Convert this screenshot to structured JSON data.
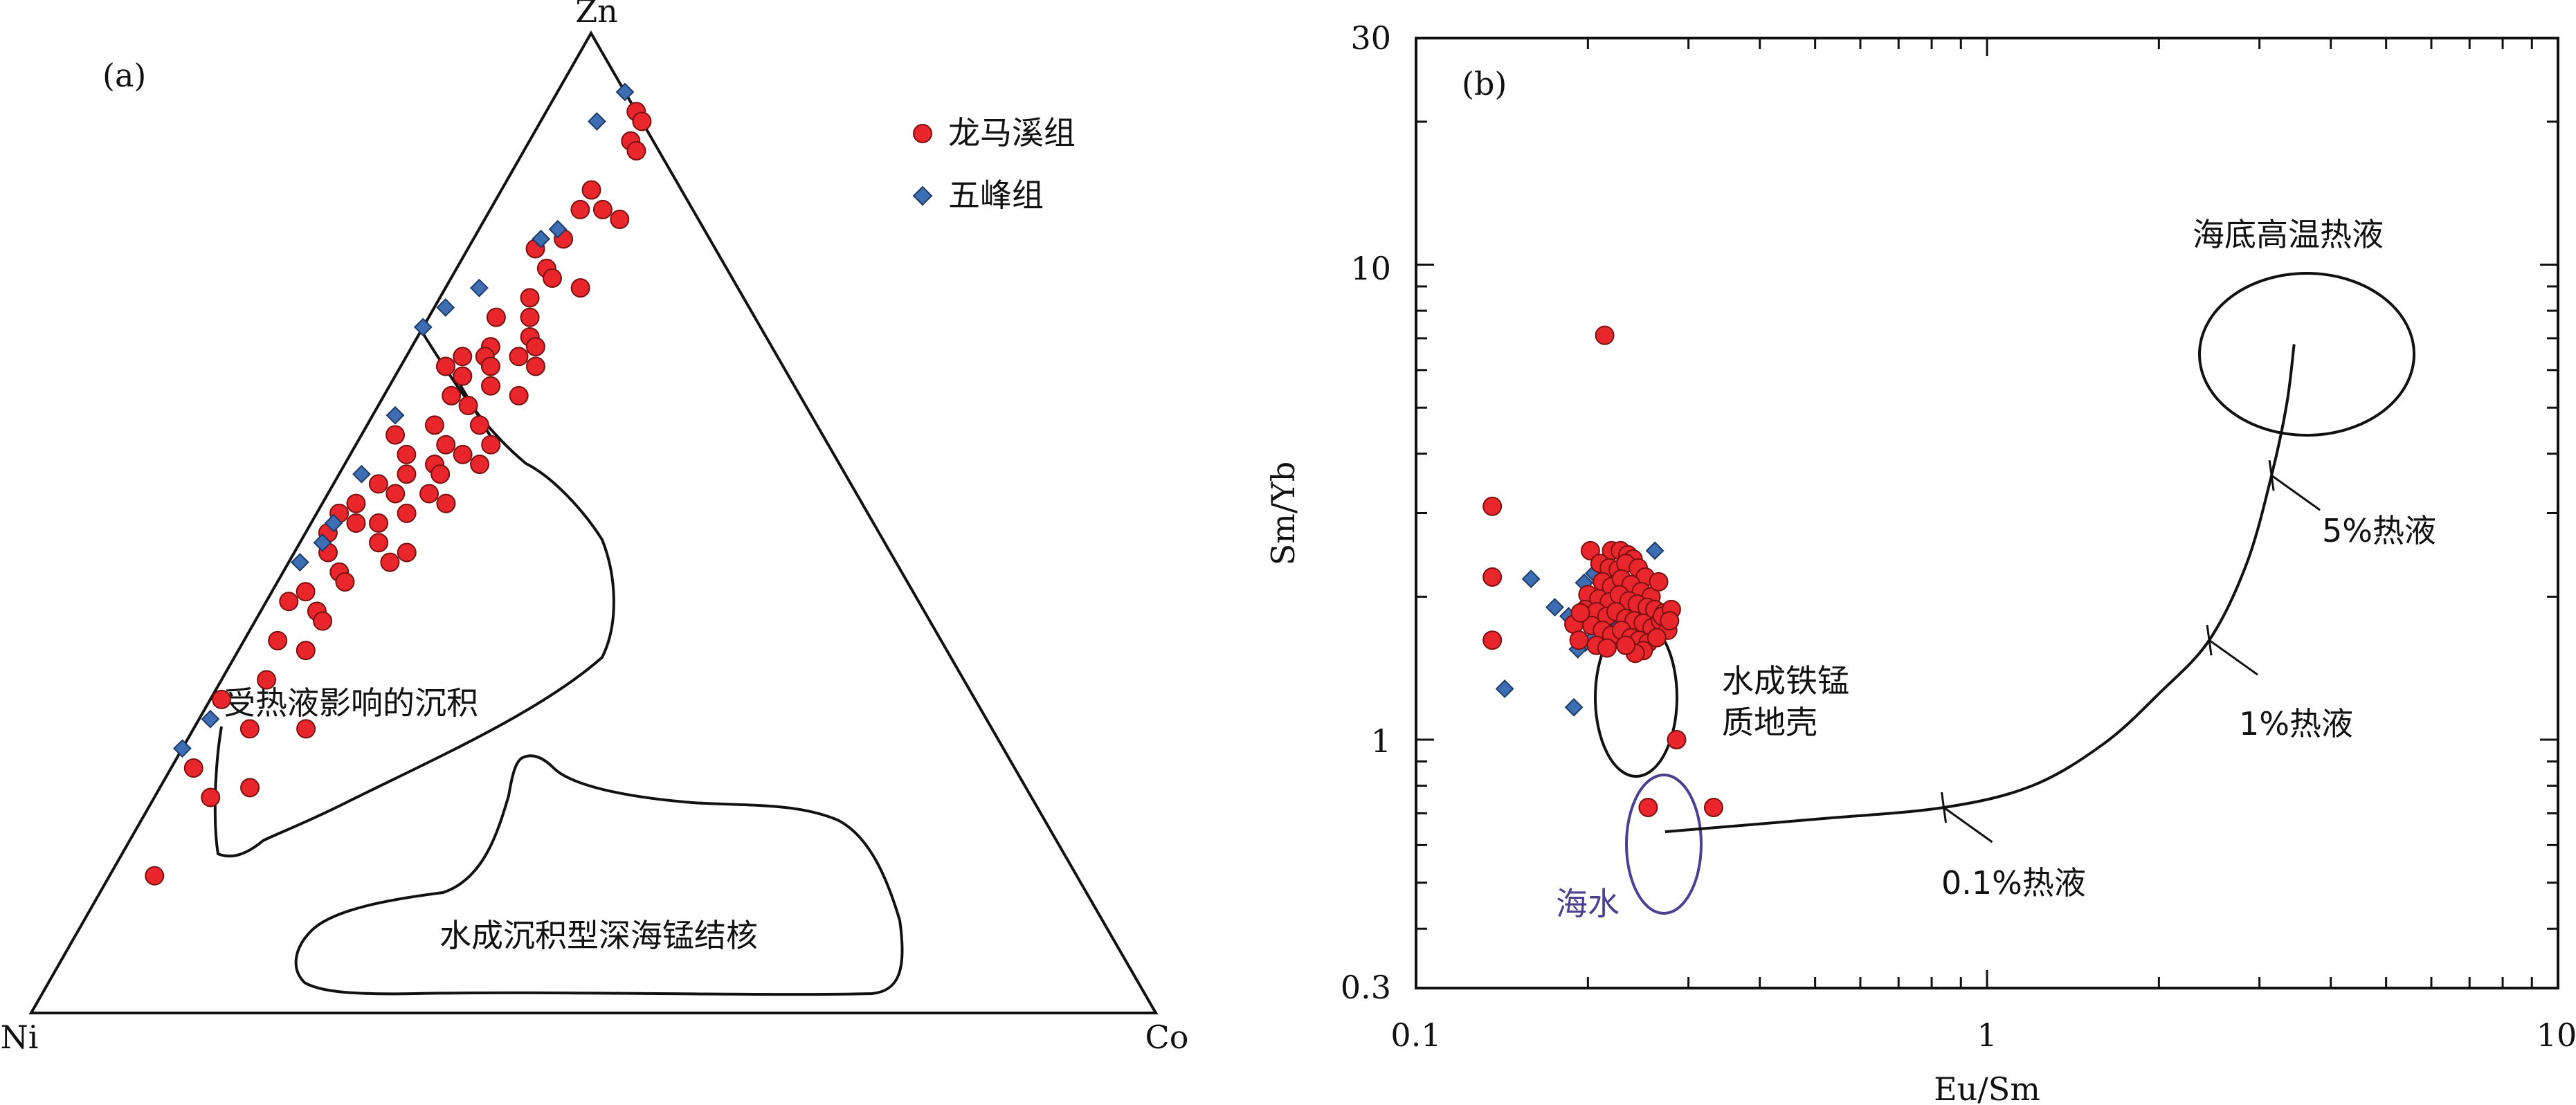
{
  "colors": {
    "longmaxi": "#e8262b",
    "wufeng": "#3d6eb3",
    "line": "#111111",
    "seawater": "#4b3f8f"
  },
  "chart_data": [
    {
      "type": "scatter",
      "subtype": "ternary",
      "panel_label": "(a)",
      "vertices": {
        "top": "Zn",
        "left": "Ni",
        "right": "Co"
      },
      "legend": {
        "placement": "top-right",
        "items": [
          {
            "name": "龙马溪组",
            "marker": "circle",
            "color": "#e8262b"
          },
          {
            "name": "五峰组",
            "marker": "diamond",
            "color": "#3d6eb3"
          }
        ]
      },
      "fields": [
        {
          "label": "受热液影响的沉积"
        },
        {
          "label": "水成沉积型深海锰结核"
        }
      ],
      "point_units": "fraction of Zn, Co, Ni (Zn + Co + Ni = 1)",
      "series": [
        {
          "name": "龙马溪组",
          "points": [
            {
              "Zn": 0.92,
              "Co": 0.08,
              "Ni": 0.0
            },
            {
              "Zn": 0.91,
              "Co": 0.09,
              "Ni": 0.0
            },
            {
              "Zn": 0.89,
              "Co": 0.09,
              "Ni": 0.02
            },
            {
              "Zn": 0.88,
              "Co": 0.1,
              "Ni": 0.02
            },
            {
              "Zn": 0.84,
              "Co": 0.08,
              "Ni": 0.08
            },
            {
              "Zn": 0.82,
              "Co": 0.08,
              "Ni": 0.1
            },
            {
              "Zn": 0.82,
              "Co": 0.1,
              "Ni": 0.08
            },
            {
              "Zn": 0.81,
              "Co": 0.12,
              "Ni": 0.07
            },
            {
              "Zn": 0.79,
              "Co": 0.08,
              "Ni": 0.13
            },
            {
              "Zn": 0.78,
              "Co": 0.06,
              "Ni": 0.16
            },
            {
              "Zn": 0.76,
              "Co": 0.08,
              "Ni": 0.16
            },
            {
              "Zn": 0.75,
              "Co": 0.09,
              "Ni": 0.16
            },
            {
              "Zn": 0.74,
              "Co": 0.12,
              "Ni": 0.14
            },
            {
              "Zn": 0.73,
              "Co": 0.08,
              "Ni": 0.19
            },
            {
              "Zn": 0.71,
              "Co": 0.06,
              "Ni": 0.23
            },
            {
              "Zn": 0.71,
              "Co": 0.09,
              "Ni": 0.2
            },
            {
              "Zn": 0.69,
              "Co": 0.1,
              "Ni": 0.21
            },
            {
              "Zn": 0.68,
              "Co": 0.11,
              "Ni": 0.21
            },
            {
              "Zn": 0.68,
              "Co": 0.07,
              "Ni": 0.25
            },
            {
              "Zn": 0.67,
              "Co": 0.07,
              "Ni": 0.26
            },
            {
              "Zn": 0.67,
              "Co": 0.05,
              "Ni": 0.28
            },
            {
              "Zn": 0.67,
              "Co": 0.1,
              "Ni": 0.23
            },
            {
              "Zn": 0.66,
              "Co": 0.12,
              "Ni": 0.22
            },
            {
              "Zn": 0.66,
              "Co": 0.08,
              "Ni": 0.26
            },
            {
              "Zn": 0.66,
              "Co": 0.04,
              "Ni": 0.3
            },
            {
              "Zn": 0.65,
              "Co": 0.06,
              "Ni": 0.29
            },
            {
              "Zn": 0.64,
              "Co": 0.09,
              "Ni": 0.27
            },
            {
              "Zn": 0.63,
              "Co": 0.12,
              "Ni": 0.25
            },
            {
              "Zn": 0.63,
              "Co": 0.06,
              "Ni": 0.31
            },
            {
              "Zn": 0.62,
              "Co": 0.08,
              "Ni": 0.3
            },
            {
              "Zn": 0.6,
              "Co": 0.1,
              "Ni": 0.3
            },
            {
              "Zn": 0.6,
              "Co": 0.06,
              "Ni": 0.34
            },
            {
              "Zn": 0.59,
              "Co": 0.03,
              "Ni": 0.38
            },
            {
              "Zn": 0.58,
              "Co": 0.12,
              "Ni": 0.3
            },
            {
              "Zn": 0.58,
              "Co": 0.08,
              "Ni": 0.34
            },
            {
              "Zn": 0.57,
              "Co": 0.1,
              "Ni": 0.33
            },
            {
              "Zn": 0.57,
              "Co": 0.05,
              "Ni": 0.38
            },
            {
              "Zn": 0.56,
              "Co": 0.12,
              "Ni": 0.32
            },
            {
              "Zn": 0.56,
              "Co": 0.08,
              "Ni": 0.36
            },
            {
              "Zn": 0.55,
              "Co": 0.09,
              "Ni": 0.36
            },
            {
              "Zn": 0.55,
              "Co": 0.06,
              "Ni": 0.39
            },
            {
              "Zn": 0.54,
              "Co": 0.04,
              "Ni": 0.42
            },
            {
              "Zn": 0.53,
              "Co": 0.09,
              "Ni": 0.38
            },
            {
              "Zn": 0.53,
              "Co": 0.06,
              "Ni": 0.41
            },
            {
              "Zn": 0.52,
              "Co": 0.11,
              "Ni": 0.37
            },
            {
              "Zn": 0.52,
              "Co": 0.03,
              "Ni": 0.45
            },
            {
              "Zn": 0.51,
              "Co": 0.02,
              "Ni": 0.47
            },
            {
              "Zn": 0.51,
              "Co": 0.08,
              "Ni": 0.41
            },
            {
              "Zn": 0.5,
              "Co": 0.04,
              "Ni": 0.46
            },
            {
              "Zn": 0.5,
              "Co": 0.06,
              "Ni": 0.44
            },
            {
              "Zn": 0.49,
              "Co": 0.02,
              "Ni": 0.49
            },
            {
              "Zn": 0.48,
              "Co": 0.07,
              "Ni": 0.45
            },
            {
              "Zn": 0.47,
              "Co": 0.03,
              "Ni": 0.5
            },
            {
              "Zn": 0.47,
              "Co": 0.1,
              "Ni": 0.43
            },
            {
              "Zn": 0.46,
              "Co": 0.09,
              "Ni": 0.45
            },
            {
              "Zn": 0.45,
              "Co": 0.05,
              "Ni": 0.5
            },
            {
              "Zn": 0.44,
              "Co": 0.06,
              "Ni": 0.5
            },
            {
              "Zn": 0.43,
              "Co": 0.03,
              "Ni": 0.54
            },
            {
              "Zn": 0.42,
              "Co": 0.02,
              "Ni": 0.56
            },
            {
              "Zn": 0.41,
              "Co": 0.05,
              "Ni": 0.54
            },
            {
              "Zn": 0.4,
              "Co": 0.06,
              "Ni": 0.54
            },
            {
              "Zn": 0.38,
              "Co": 0.03,
              "Ni": 0.59
            },
            {
              "Zn": 0.37,
              "Co": 0.06,
              "Ni": 0.57
            },
            {
              "Zn": 0.34,
              "Co": 0.04,
              "Ni": 0.62
            },
            {
              "Zn": 0.32,
              "Co": 0.01,
              "Ni": 0.67
            },
            {
              "Zn": 0.29,
              "Co": 0.1,
              "Ni": 0.61
            },
            {
              "Zn": 0.29,
              "Co": 0.05,
              "Ni": 0.66
            },
            {
              "Zn": 0.25,
              "Co": 0.02,
              "Ni": 0.73
            },
            {
              "Zn": 0.23,
              "Co": 0.08,
              "Ni": 0.69
            },
            {
              "Zn": 0.22,
              "Co": 0.05,
              "Ni": 0.73
            },
            {
              "Zn": 0.14,
              "Co": 0.04,
              "Ni": 0.82
            }
          ]
        },
        {
          "name": "五峰组",
          "points": [
            {
              "Zn": 0.94,
              "Co": 0.06,
              "Ni": 0.0
            },
            {
              "Zn": 0.91,
              "Co": 0.05,
              "Ni": 0.04
            },
            {
              "Zn": 0.8,
              "Co": 0.07,
              "Ni": 0.13
            },
            {
              "Zn": 0.79,
              "Co": 0.06,
              "Ni": 0.15
            },
            {
              "Zn": 0.74,
              "Co": 0.03,
              "Ni": 0.23
            },
            {
              "Zn": 0.72,
              "Co": 0.01,
              "Ni": 0.27
            },
            {
              "Zn": 0.7,
              "Co": 0.0,
              "Ni": 0.3
            },
            {
              "Zn": 0.61,
              "Co": 0.02,
              "Ni": 0.37
            },
            {
              "Zn": 0.55,
              "Co": 0.02,
              "Ni": 0.43
            },
            {
              "Zn": 0.5,
              "Co": 0.02,
              "Ni": 0.48
            },
            {
              "Zn": 0.48,
              "Co": 0.02,
              "Ni": 0.5
            },
            {
              "Zn": 0.46,
              "Co": 0.01,
              "Ni": 0.53
            },
            {
              "Zn": 0.3,
              "Co": 0.01,
              "Ni": 0.69
            },
            {
              "Zn": 0.27,
              "Co": 0.0,
              "Ni": 0.73
            }
          ]
        }
      ]
    },
    {
      "type": "scatter",
      "panel_label": "(b)",
      "xlabel": "Eu/Sm",
      "ylabel": "Sm/Yb",
      "xscale": "log",
      "yscale": "log",
      "xlim": [
        0.1,
        10
      ],
      "ylim": [
        0.3,
        30
      ],
      "xticks": [
        "0.1",
        "1",
        "10"
      ],
      "yticks": [
        "0.3",
        "1",
        "10",
        "30"
      ],
      "series": [
        {
          "name": "龙马溪组",
          "points": [
            [
              0.214,
              7.1
            ],
            [
              0.136,
              3.1
            ],
            [
              0.136,
              2.2
            ],
            [
              0.136,
              1.62
            ],
            [
              0.332,
              0.72
            ],
            [
              0.286,
              1.0
            ],
            [
              0.255,
              0.72
            ],
            [
              0.22,
              2.5
            ],
            [
              0.228,
              2.5
            ],
            [
              0.235,
              2.45
            ],
            [
              0.24,
              2.4
            ],
            [
              0.202,
              2.5
            ],
            [
              0.21,
              2.35
            ],
            [
              0.218,
              2.3
            ],
            [
              0.226,
              2.28
            ],
            [
              0.233,
              2.35
            ],
            [
              0.245,
              2.3
            ],
            [
              0.252,
              2.2
            ],
            [
              0.212,
              2.15
            ],
            [
              0.22,
              2.1
            ],
            [
              0.229,
              2.18
            ],
            [
              0.238,
              2.12
            ],
            [
              0.248,
              2.05
            ],
            [
              0.258,
              2.0
            ],
            [
              0.266,
              2.15
            ],
            [
              0.2,
              2.02
            ],
            [
              0.209,
              1.98
            ],
            [
              0.218,
              1.95
            ],
            [
              0.227,
              2.02
            ],
            [
              0.236,
              1.96
            ],
            [
              0.244,
              1.93
            ],
            [
              0.254,
              1.9
            ],
            [
              0.262,
              1.88
            ],
            [
              0.272,
              1.85
            ],
            [
              0.198,
              1.88
            ],
            [
              0.207,
              1.86
            ],
            [
              0.216,
              1.82
            ],
            [
              0.224,
              1.86
            ],
            [
              0.233,
              1.8
            ],
            [
              0.241,
              1.78
            ],
            [
              0.25,
              1.76
            ],
            [
              0.259,
              1.72
            ],
            [
              0.268,
              1.78
            ],
            [
              0.276,
              1.7
            ],
            [
              0.203,
              1.74
            ],
            [
              0.212,
              1.7
            ],
            [
              0.22,
              1.66
            ],
            [
              0.229,
              1.7
            ],
            [
              0.238,
              1.64
            ],
            [
              0.246,
              1.62
            ],
            [
              0.255,
              1.6
            ],
            [
              0.264,
              1.64
            ],
            [
              0.27,
              1.82
            ],
            [
              0.189,
              1.75
            ],
            [
              0.194,
              1.85
            ],
            [
              0.193,
              1.62
            ],
            [
              0.207,
              1.58
            ],
            [
              0.216,
              1.56
            ],
            [
              0.25,
              1.54
            ],
            [
              0.242,
              1.52
            ],
            [
              0.233,
              1.58
            ],
            [
              0.28,
              1.88
            ],
            [
              0.278,
              1.78
            ]
          ]
        },
        {
          "name": "五峰组",
          "points": [
            [
              0.159,
              2.18
            ],
            [
              0.175,
              1.9
            ],
            [
              0.185,
              1.82
            ],
            [
              0.197,
              2.14
            ],
            [
              0.205,
              2.24
            ],
            [
              0.212,
              2.0
            ],
            [
              0.218,
              1.9
            ],
            [
              0.225,
              1.72
            ],
            [
              0.232,
              1.78
            ],
            [
              0.238,
              1.68
            ],
            [
              0.245,
              1.75
            ],
            [
              0.252,
              1.66
            ],
            [
              0.262,
              2.5
            ],
            [
              0.21,
              1.72
            ],
            [
              0.198,
              1.6
            ],
            [
              0.205,
              1.64
            ],
            [
              0.228,
              1.6
            ],
            [
              0.238,
              1.58
            ],
            [
              0.192,
              1.55
            ],
            [
              0.143,
              1.28
            ],
            [
              0.189,
              1.17
            ]
          ]
        }
      ],
      "fields": [
        {
          "label_lines": [
            "水成铁锰",
            "质地壳"
          ]
        },
        {
          "label": "海水"
        },
        {
          "label": "海底高温热液"
        }
      ],
      "mixing_curve": {
        "points": [
          [
            0.273,
            0.64
          ],
          [
            0.5,
            0.68
          ],
          [
            0.84,
            0.72
          ],
          [
            1.2,
            0.8
          ],
          [
            1.6,
            0.98
          ],
          [
            2.0,
            1.25
          ],
          [
            2.45,
            1.62
          ],
          [
            2.85,
            2.35
          ],
          [
            3.15,
            3.6
          ],
          [
            3.35,
            5.1
          ],
          [
            3.45,
            6.8
          ]
        ],
        "marks": [
          {
            "x": 0.84,
            "y": 0.72,
            "label": "0.1%热液"
          },
          {
            "x": 2.45,
            "y": 1.62,
            "label": "1%热液"
          },
          {
            "x": 3.15,
            "y": 3.6,
            "label": "5%热液"
          }
        ]
      }
    }
  ]
}
